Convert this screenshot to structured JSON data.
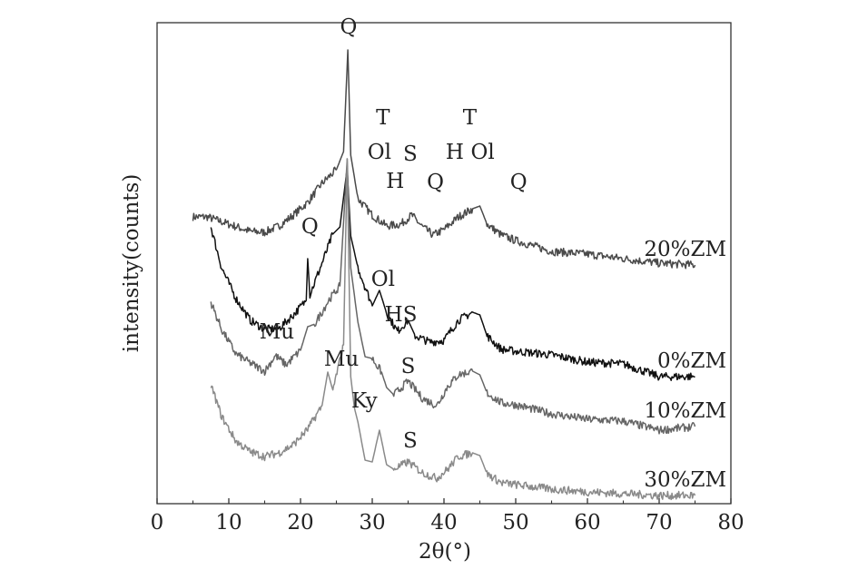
{
  "chart_data": {
    "type": "line",
    "title": "",
    "xlabel": "2θ(°)",
    "ylabel": "intensity(counts)",
    "xlim": [
      0,
      80
    ],
    "xticks": [
      0,
      10,
      20,
      30,
      40,
      50,
      60,
      70,
      80
    ],
    "grid": false,
    "legend": "none",
    "series": [
      {
        "name": "20%ZM",
        "color": "#4a4a4a",
        "points": [
          [
            5,
            31.6
          ],
          [
            7,
            31.6
          ],
          [
            10,
            30.8
          ],
          [
            13,
            30.0
          ],
          [
            15,
            29.9
          ],
          [
            17,
            30.6
          ],
          [
            19,
            31.8
          ],
          [
            21,
            33.2
          ],
          [
            23,
            35.3
          ],
          [
            25,
            36.8
          ],
          [
            26,
            38.8
          ],
          [
            26.6,
            50.0
          ],
          [
            27,
            38.4
          ],
          [
            28,
            33.6
          ],
          [
            30,
            31.8
          ],
          [
            32,
            30.6
          ],
          [
            34,
            30.8
          ],
          [
            35.5,
            31.8
          ],
          [
            37,
            30.5
          ],
          [
            38.5,
            29.6
          ],
          [
            40,
            30.2
          ],
          [
            42,
            31.6
          ],
          [
            44,
            32.5
          ],
          [
            45,
            32.8
          ],
          [
            46,
            30.8
          ],
          [
            48,
            29.6
          ],
          [
            50,
            29.0
          ],
          [
            55,
            27.8
          ],
          [
            60,
            27.5
          ],
          [
            65,
            27.0
          ],
          [
            70,
            26.5
          ],
          [
            75,
            26.3
          ]
        ],
        "label": "20%ZM"
      },
      {
        "name": "0%ZM",
        "color": "#111111",
        "points": [
          [
            7.5,
            30.5
          ],
          [
            9,
            26.0
          ],
          [
            11,
            22.6
          ],
          [
            13,
            20.2
          ],
          [
            15,
            19.2
          ],
          [
            17,
            19.3
          ],
          [
            19,
            20.8
          ],
          [
            20.8,
            22.4
          ],
          [
            21,
            27.0
          ],
          [
            21.3,
            23.0
          ],
          [
            23,
            26.5
          ],
          [
            24.5,
            29.7
          ],
          [
            25.5,
            30.5
          ],
          [
            26.5,
            37.0
          ],
          [
            27,
            29.5
          ],
          [
            28,
            26.0
          ],
          [
            30,
            21.8
          ],
          [
            31,
            23.5
          ],
          [
            32,
            21.0
          ],
          [
            33.5,
            19.0
          ],
          [
            35,
            20.2
          ],
          [
            36,
            18.5
          ],
          [
            38,
            17.8
          ],
          [
            40,
            18.0
          ],
          [
            42,
            20.2
          ],
          [
            44,
            21.1
          ],
          [
            45,
            20.8
          ],
          [
            46,
            18.5
          ],
          [
            48,
            17.0
          ],
          [
            50,
            16.8
          ],
          [
            55,
            16.4
          ],
          [
            60,
            15.6
          ],
          [
            65,
            15.4
          ],
          [
            70,
            14.0
          ],
          [
            75,
            14.0
          ]
        ],
        "label": "0%ZM"
      },
      {
        "name": "10%ZM",
        "color": "#666666",
        "points": [
          [
            7.5,
            22.2
          ],
          [
            9,
            19.2
          ],
          [
            11,
            16.5
          ],
          [
            13,
            15.5
          ],
          [
            15,
            14.6
          ],
          [
            16.5,
            16.3
          ],
          [
            18,
            15.3
          ],
          [
            20,
            16.9
          ],
          [
            21,
            19.5
          ],
          [
            22,
            19.8
          ],
          [
            24,
            22.5
          ],
          [
            25.5,
            24.0
          ],
          [
            26.5,
            38.0
          ],
          [
            27,
            26.0
          ],
          [
            28,
            20.0
          ],
          [
            29,
            16.2
          ],
          [
            30,
            16.0
          ],
          [
            31.3,
            14.5
          ],
          [
            32,
            12.8
          ],
          [
            33,
            12.0
          ],
          [
            35,
            13.5
          ],
          [
            37,
            11.6
          ],
          [
            39,
            10.8
          ],
          [
            40.5,
            12.9
          ],
          [
            42,
            14.2
          ],
          [
            44,
            14.6
          ],
          [
            45,
            14.2
          ],
          [
            46,
            12.2
          ],
          [
            48,
            11.1
          ],
          [
            50,
            10.9
          ],
          [
            55,
            9.9
          ],
          [
            60,
            9.3
          ],
          [
            65,
            9.1
          ],
          [
            70,
            8.1
          ],
          [
            75,
            8.5
          ]
        ],
        "label": "10%ZM"
      },
      {
        "name": "30%ZM",
        "color": "#8a8a8a",
        "points": [
          [
            7.5,
            13.1
          ],
          [
            9,
            9.6
          ],
          [
            11,
            6.9
          ],
          [
            13,
            5.7
          ],
          [
            15,
            5.2
          ],
          [
            17,
            5.6
          ],
          [
            19,
            6.5
          ],
          [
            21,
            8.2
          ],
          [
            23,
            10.8
          ],
          [
            23.8,
            14.5
          ],
          [
            24.5,
            12.5
          ],
          [
            26,
            17.5
          ],
          [
            26.5,
            38.0
          ],
          [
            27,
            14.0
          ],
          [
            27.5,
            10.6
          ],
          [
            28,
            9.0
          ],
          [
            29,
            4.8
          ],
          [
            30,
            4.6
          ],
          [
            31,
            8.1
          ],
          [
            32,
            4.3
          ],
          [
            33,
            3.8
          ],
          [
            35,
            4.6
          ],
          [
            37,
            3.4
          ],
          [
            39,
            2.8
          ],
          [
            40.5,
            3.8
          ],
          [
            42,
            5.2
          ],
          [
            44,
            5.6
          ],
          [
            45,
            5.3
          ],
          [
            46,
            3.3
          ],
          [
            48,
            2.3
          ],
          [
            50,
            2.1
          ],
          [
            55,
            1.6
          ],
          [
            60,
            1.3
          ],
          [
            65,
            1.1
          ],
          [
            70,
            0.9
          ],
          [
            75,
            0.9
          ]
        ],
        "label": "30%ZM"
      }
    ],
    "annotations": [
      {
        "text": "Q",
        "x": 26.7,
        "y": 51.8
      },
      {
        "text": "T",
        "x": 31.5,
        "y": 41.8
      },
      {
        "text": "Ol",
        "x": 31.0,
        "y": 38.0
      },
      {
        "text": "S",
        "x": 35.3,
        "y": 37.8
      },
      {
        "text": "H",
        "x": 33.2,
        "y": 34.8
      },
      {
        "text": "Q",
        "x": 38.8,
        "y": 34.7
      },
      {
        "text": "H",
        "x": 41.5,
        "y": 38.0
      },
      {
        "text": "T",
        "x": 43.6,
        "y": 41.8
      },
      {
        "text": "Ol",
        "x": 45.4,
        "y": 38.0
      },
      {
        "text": "Q",
        "x": 50.4,
        "y": 34.7
      },
      {
        "text": "Q",
        "x": 21.3,
        "y": 29.8
      },
      {
        "text": "Ol",
        "x": 31.5,
        "y": 24.0
      },
      {
        "text": "HS",
        "x": 34.0,
        "y": 20.1
      },
      {
        "text": "Mu",
        "x": 16.7,
        "y": 18.2
      },
      {
        "text": "Mu",
        "x": 25.7,
        "y": 15.2
      },
      {
        "text": "S",
        "x": 35.0,
        "y": 14.4
      },
      {
        "text": "Ky",
        "x": 28.9,
        "y": 10.6
      },
      {
        "text": "S",
        "x": 35.3,
        "y": 6.2
      }
    ]
  }
}
